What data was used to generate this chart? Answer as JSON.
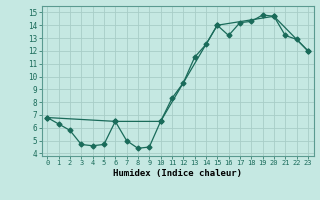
{
  "line1_x": [
    0,
    1,
    2,
    3,
    4,
    5,
    6,
    7,
    8,
    9,
    10,
    11,
    12,
    13,
    14,
    15,
    16,
    17,
    18,
    19,
    20,
    21,
    22,
    23
  ],
  "line1_y": [
    6.8,
    6.3,
    5.8,
    4.7,
    4.6,
    4.7,
    6.5,
    5.0,
    4.4,
    4.5,
    6.5,
    8.3,
    9.5,
    11.5,
    12.5,
    14.0,
    13.2,
    14.2,
    14.3,
    14.8,
    14.7,
    13.2,
    12.9,
    12.0
  ],
  "line2_x": [
    0,
    6,
    10,
    15,
    20,
    23
  ],
  "line2_y": [
    6.8,
    6.5,
    6.5,
    14.0,
    14.7,
    12.0
  ],
  "line_color": "#1a6b5a",
  "bg_color": "#c5e8e2",
  "grid_color": "#a8cdc7",
  "xlabel": "Humidex (Indice chaleur)",
  "xlim": [
    -0.5,
    23.5
  ],
  "ylim": [
    3.8,
    15.5
  ],
  "xticks": [
    0,
    1,
    2,
    3,
    4,
    5,
    6,
    7,
    8,
    9,
    10,
    11,
    12,
    13,
    14,
    15,
    16,
    17,
    18,
    19,
    20,
    21,
    22,
    23
  ],
  "yticks": [
    4,
    5,
    6,
    7,
    8,
    9,
    10,
    11,
    12,
    13,
    14,
    15
  ],
  "xtick_labels": [
    "0",
    "1",
    "2",
    "3",
    "4",
    "5",
    "6",
    "7",
    "8",
    "9",
    "10",
    "11",
    "12",
    "13",
    "14",
    "15",
    "16",
    "17",
    "18",
    "19",
    "20",
    "21",
    "22",
    "23"
  ],
  "ytick_labels": [
    "4",
    "5",
    "6",
    "7",
    "8",
    "9",
    "10",
    "11",
    "12",
    "13",
    "14",
    "15"
  ]
}
